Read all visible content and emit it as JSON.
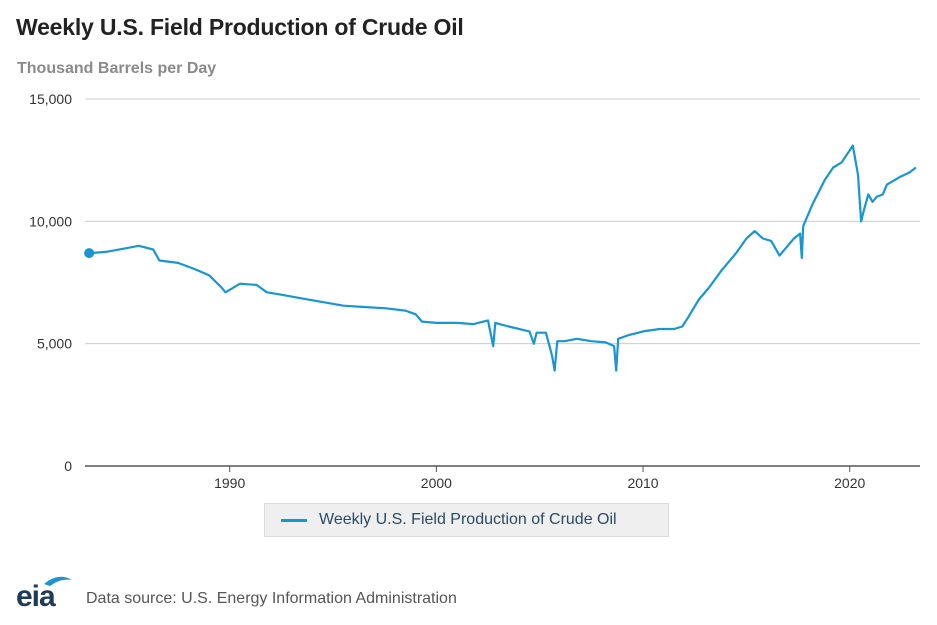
{
  "title": "Weekly U.S. Field Production of Crude Oil",
  "subtitle": "Thousand Barrels per Day",
  "legend_label": "Weekly U.S. Field Production of Crude Oil",
  "source": "Data source: U.S. Energy Information Administration",
  "logo_text": "eia",
  "colors": {
    "series": "#1a95d2",
    "grid": "#cccccc",
    "axis": "#555555"
  },
  "chart_data": {
    "type": "line",
    "title": "Weekly U.S. Field Production of Crude Oil",
    "ylabel": "Thousand Barrels per Day",
    "xlim": [
      1983,
      2023.4
    ],
    "ylim": [
      0,
      15000
    ],
    "y_ticks": [
      0,
      5000,
      10000,
      15000
    ],
    "y_tick_labels": [
      "0",
      "5,000",
      "10,000",
      "15,000"
    ],
    "x_ticks": [
      1990,
      2000,
      2010,
      2020
    ],
    "x_tick_labels": [
      "1990",
      "2000",
      "2010",
      "2020"
    ],
    "grid": true,
    "legend_position": "bottom",
    "series": [
      {
        "name": "Weekly U.S. Field Production of Crude Oil",
        "x": [
          1983.2,
          1984.0,
          1985.0,
          1985.6,
          1986.3,
          1986.6,
          1987.5,
          1988.3,
          1989.0,
          1989.6,
          1989.8,
          1990.5,
          1991.3,
          1991.8,
          1992.5,
          1993.5,
          1994.5,
          1995.5,
          1996.5,
          1997.5,
          1998.5,
          1999.0,
          1999.3,
          2000.0,
          2001.0,
          2001.8,
          2002.5,
          2002.75,
          2002.85,
          2003.5,
          2004.5,
          2004.72,
          2004.85,
          2005.3,
          2005.6,
          2005.72,
          2005.85,
          2006.2,
          2006.8,
          2007.5,
          2008.2,
          2008.6,
          2008.7,
          2008.8,
          2009.3,
          2010.0,
          2010.8,
          2011.5,
          2011.9,
          2012.2,
          2012.7,
          2013.2,
          2013.8,
          2014.5,
          2015.0,
          2015.4,
          2015.8,
          2016.2,
          2016.6,
          2016.9,
          2017.3,
          2017.6,
          2017.68,
          2017.75,
          2018.2,
          2018.8,
          2019.2,
          2019.6,
          2020.0,
          2020.15,
          2020.4,
          2020.55,
          2020.7,
          2020.9,
          2021.1,
          2021.3,
          2021.6,
          2021.8,
          2022.0,
          2022.4,
          2022.9,
          2023.2
        ],
        "y": [
          8700,
          8750,
          8900,
          9000,
          8850,
          8400,
          8300,
          8050,
          7800,
          7300,
          7100,
          7450,
          7400,
          7100,
          7000,
          6850,
          6700,
          6550,
          6500,
          6450,
          6350,
          6200,
          5900,
          5850,
          5850,
          5800,
          5950,
          4900,
          5850,
          5700,
          5500,
          5000,
          5450,
          5450,
          4500,
          3900,
          5100,
          5100,
          5200,
          5100,
          5050,
          4900,
          3900,
          5200,
          5350,
          5500,
          5600,
          5600,
          5700,
          6100,
          6800,
          7300,
          8000,
          8700,
          9300,
          9600,
          9300,
          9200,
          8600,
          8900,
          9300,
          9500,
          8500,
          9800,
          10700,
          11700,
          12200,
          12400,
          12900,
          13100,
          11900,
          10000,
          10500,
          11100,
          10800,
          11000,
          11100,
          11500,
          11600,
          11800,
          12000,
          12200
        ]
      }
    ]
  }
}
